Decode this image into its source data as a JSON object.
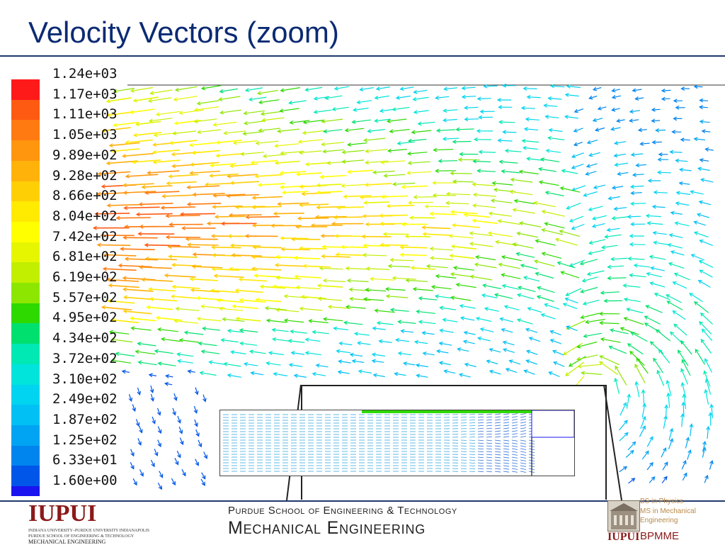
{
  "slide": {
    "title": "Velocity Vectors (zoom)"
  },
  "chart_data": {
    "type": "vector-field",
    "title": "",
    "colorbar": {
      "labels": [
        "1.24e+03",
        "1.17e+03",
        "1.11e+03",
        "1.05e+03",
        "9.89e+02",
        "9.28e+02",
        "8.66e+02",
        "8.04e+02",
        "7.42e+02",
        "6.81e+02",
        "6.19e+02",
        "5.57e+02",
        "4.95e+02",
        "4.34e+02",
        "3.72e+02",
        "3.10e+02",
        "2.49e+02",
        "1.87e+02",
        "1.25e+02",
        "6.33e+01",
        "1.60e+00"
      ],
      "values": [
        1240,
        1170,
        1110,
        1050,
        989,
        928,
        866,
        804,
        742,
        681,
        619,
        557,
        495,
        434,
        372,
        310,
        249,
        187,
        125,
        63.3,
        1.6
      ],
      "colors": [
        "#ff1a1a",
        "#ff5a12",
        "#ff7a10",
        "#ff960e",
        "#ffb20a",
        "#ffcf06",
        "#ffea02",
        "#ffff00",
        "#e6f500",
        "#c2ee00",
        "#8de600",
        "#2ed900",
        "#00e06e",
        "#00e8b4",
        "#00e4dc",
        "#00d4f0",
        "#00c0f4",
        "#00a4f2",
        "#0084ee",
        "#0056e8",
        "#1a14f0"
      ]
    },
    "inset": "overall view (zoom region)"
  },
  "footer": {
    "logo_text": "IUPUI",
    "logo_line1": "INDIANA UNIVERSITY–PURDUE UNIVERSITY INDIANAPOLIS",
    "logo_line2": "PURDUE SCHOOL OF ENGINEERING & TECHNOLOGY",
    "logo_line3": "MECHANICAL ENGINEERING",
    "school": "Purdue School of Engineering & Technology",
    "department": "Mechanical Engineering",
    "bpmme_line1": "BS in Physics",
    "bpmme_line2": "MS in Mechanical",
    "bpmme_line3": "Engineering",
    "bpmme_iupui": "IUPUI",
    "bpmme_name": "BPMME"
  }
}
